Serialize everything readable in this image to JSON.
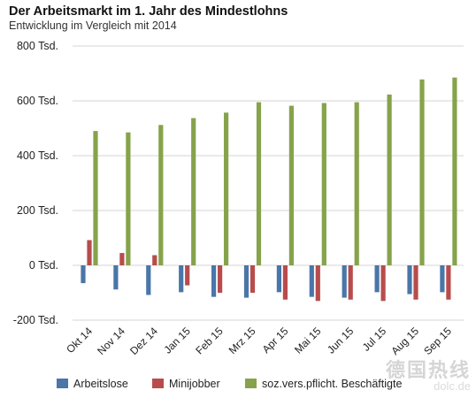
{
  "header": {
    "title": "Der Arbeitsmarkt im 1. Jahr des Mindestlohns",
    "subtitle": "Entwicklung im Vergleich mit 2014"
  },
  "watermark": {
    "line1": "德国热线",
    "line2": "dolc.de"
  },
  "chart_data": {
    "type": "bar",
    "categories": [
      "Okt 14",
      "Nov 14",
      "Dez 14",
      "Jan 15",
      "Feb 15",
      "Mrz 15",
      "Apr 15",
      "Mai 15",
      "Jun 15",
      "Jul 15",
      "Aug 15",
      "Sep 15"
    ],
    "series": [
      {
        "name": "Arbeitslose",
        "color": "#4a76a8",
        "values": [
          -65,
          -88,
          -108,
          -98,
          -115,
          -118,
          -98,
          -115,
          -118,
          -98,
          -105,
          -98
        ]
      },
      {
        "name": "Minijobber",
        "color": "#b84c4c",
        "values": [
          92,
          45,
          37,
          -73,
          -100,
          -100,
          -125,
          -130,
          -125,
          -130,
          -125,
          -125
        ]
      },
      {
        "name": "soz.vers.pflicht. Beschäftigte",
        "color": "#86a34b",
        "values": [
          490,
          485,
          512,
          537,
          557,
          595,
          582,
          592,
          595,
          623,
          678,
          685
        ]
      }
    ],
    "ylim": [
      -200,
      800
    ],
    "yticks": [
      -200,
      0,
      200,
      400,
      600,
      800
    ],
    "ytick_labels": [
      "-200 Tsd.",
      "0 Tsd.",
      "200 Tsd.",
      "400 Tsd.",
      "600 Tsd.",
      "800 Tsd."
    ],
    "grid": true,
    "legend_position": "bottom"
  }
}
